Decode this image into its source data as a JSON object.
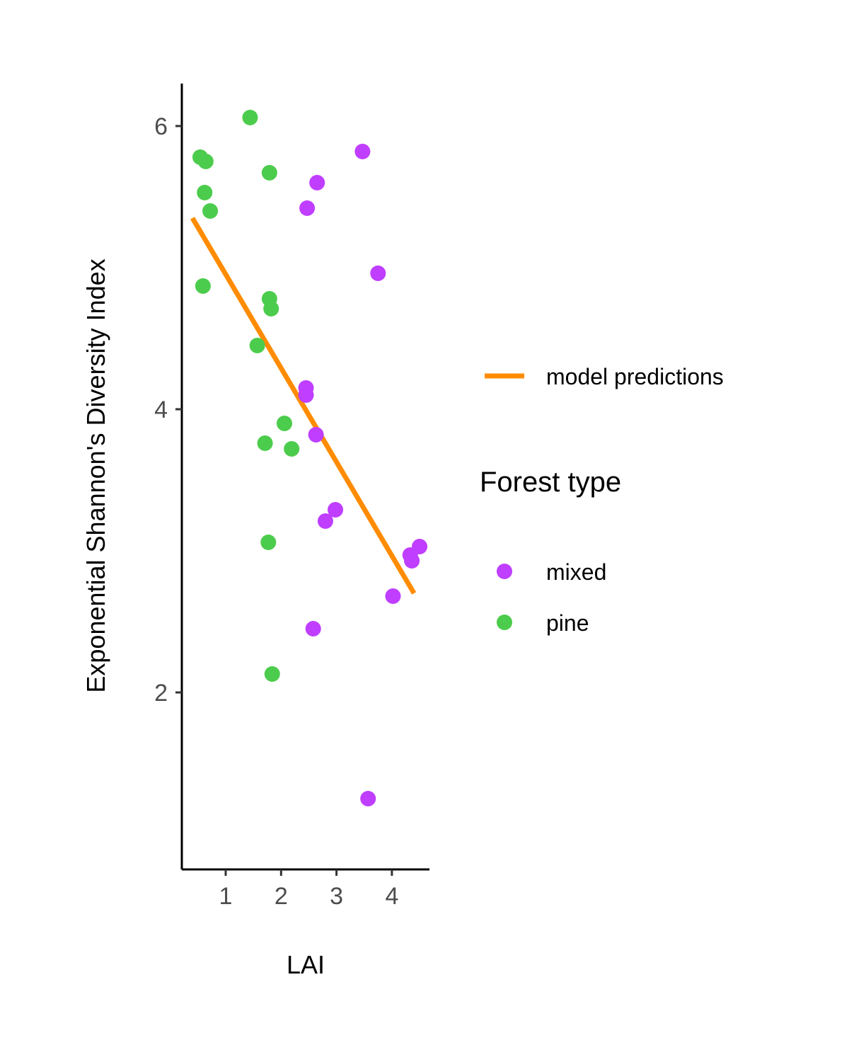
{
  "chart_data": {
    "type": "scatter",
    "title": "",
    "xlabel": "LAI",
    "ylabel": "Exponential Shannon's Diversity Index",
    "xlim": [
      0.2,
      4.7
    ],
    "ylim": [
      1.25,
      6.3
    ],
    "x_ticks": [
      1,
      2,
      3,
      4
    ],
    "y_ticks": [
      2,
      4,
      6
    ],
    "grid": false,
    "legend_position": "right",
    "legend_title": "Forest type",
    "line_legend_label": "model predictions",
    "model_line": {
      "name": "model predictions",
      "color": "#FF8C00",
      "x": [
        0.4,
        4.4
      ],
      "y": [
        5.35,
        2.7
      ]
    },
    "series": [
      {
        "name": "mixed",
        "color": "#BF3EFF",
        "x": [
          3.47,
          2.65,
          2.47,
          3.75,
          2.45,
          2.45,
          2.63,
          2.98,
          2.8,
          4.5,
          4.33,
          4.36,
          4.02,
          2.58,
          3.57
        ],
        "y": [
          5.82,
          5.6,
          5.42,
          4.96,
          4.15,
          4.1,
          3.82,
          3.29,
          3.21,
          3.03,
          2.97,
          2.93,
          2.68,
          2.45,
          1.25
        ]
      },
      {
        "name": "pine",
        "color": "#4CCC4C",
        "x": [
          1.44,
          0.54,
          0.64,
          0.62,
          1.79,
          0.72,
          0.59,
          1.79,
          1.82,
          1.57,
          2.06,
          1.71,
          2.19,
          1.77,
          1.84
        ],
        "y": [
          6.06,
          5.78,
          5.75,
          5.53,
          5.67,
          5.4,
          4.87,
          4.78,
          4.71,
          4.45,
          3.9,
          3.76,
          3.72,
          3.06,
          2.13
        ]
      }
    ]
  }
}
